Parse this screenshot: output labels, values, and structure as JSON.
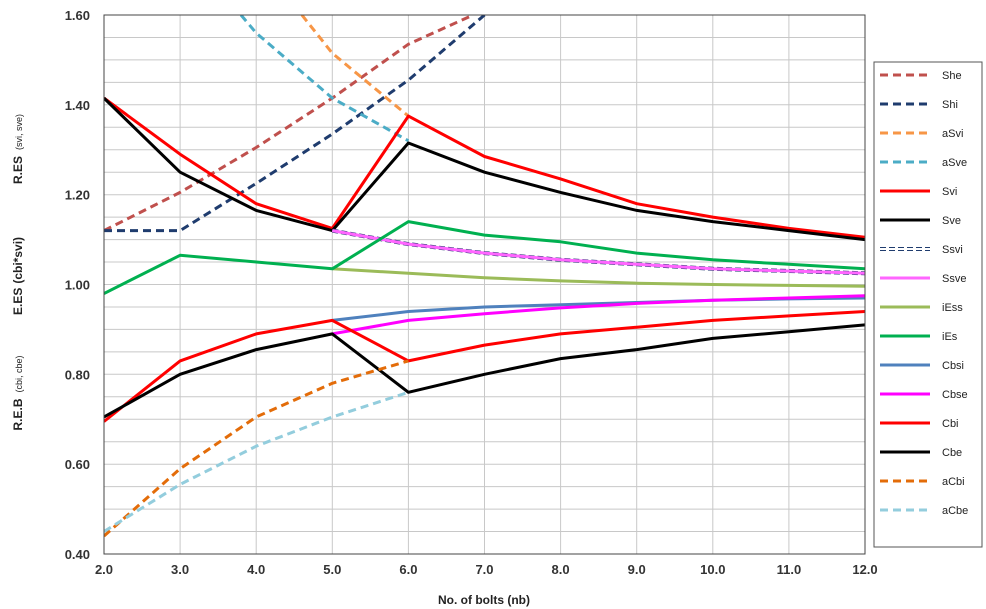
{
  "chart_data": {
    "type": "line",
    "xlabel": "No. of bolts (nb)",
    "ylabels": [
      {
        "main": "R.ES",
        "sub": "(svi, sve)"
      },
      {
        "main": "E.ES",
        "sub": "(cbi*svi)"
      },
      {
        "main": "R.E.B",
        "sub": "(cbi, cbe)"
      }
    ],
    "xlim": [
      2,
      12
    ],
    "ylim": [
      0.4,
      1.6
    ],
    "xticks": [
      2,
      3,
      4,
      5,
      6,
      7,
      8,
      9,
      10,
      11,
      12
    ],
    "xtick_labels": [
      "2.0",
      "3.0",
      "4.0",
      "5.0",
      "6.0",
      "7.0",
      "8.0",
      "9.0",
      "10.0",
      "11.0",
      "12.0"
    ],
    "yticks": [
      0.4,
      0.6,
      0.8,
      1.0,
      1.2,
      1.4,
      1.6
    ],
    "ytick_labels": [
      "0.40",
      "0.60",
      "0.80",
      "1.00",
      "1.20",
      "1.40",
      "1.60"
    ],
    "grid": true,
    "legend_position": "right",
    "series": [
      {
        "name": "She",
        "color": "#c0504d",
        "dash": true,
        "x": [
          2,
          3,
          4,
          5,
          6,
          6.85
        ],
        "y": [
          1.12,
          1.205,
          1.305,
          1.415,
          1.535,
          1.6
        ]
      },
      {
        "name": "Shi",
        "color": "#1f3c6e",
        "dash": true,
        "x": [
          2,
          3,
          4,
          5,
          6,
          7
        ],
        "y": [
          1.12,
          1.12,
          1.225,
          1.335,
          1.455,
          1.6
        ]
      },
      {
        "name": "aSvi",
        "color": "#f79646",
        "dash": true,
        "x": [
          4.6,
          5,
          6
        ],
        "y": [
          1.6,
          1.515,
          1.375
        ]
      },
      {
        "name": "aSve",
        "color": "#4bacc6",
        "dash": true,
        "x": [
          3.8,
          4,
          5,
          6
        ],
        "y": [
          1.6,
          1.56,
          1.415,
          1.32
        ]
      },
      {
        "name": "Svi",
        "color": "#ff0000",
        "dash": false,
        "x": [
          2,
          3,
          4,
          5,
          6,
          7,
          8,
          9,
          10,
          11,
          12
        ],
        "y": [
          1.415,
          1.29,
          1.18,
          1.125,
          1.375,
          1.285,
          1.235,
          1.18,
          1.15,
          1.125,
          1.105
        ]
      },
      {
        "name": "Sve",
        "color": "#000000",
        "dash": false,
        "x": [
          2,
          3,
          4,
          5,
          6,
          7,
          8,
          9,
          10,
          11,
          12
        ],
        "y": [
          1.415,
          1.25,
          1.165,
          1.12,
          1.315,
          1.25,
          1.205,
          1.165,
          1.14,
          1.12,
          1.1
        ]
      },
      {
        "name": "Ssvi",
        "color": "#1f3c6e",
        "dash": false,
        "outline": true,
        "x": [
          5,
          6,
          7,
          8,
          9,
          10,
          11,
          12
        ],
        "y": [
          1.12,
          1.09,
          1.07,
          1.055,
          1.045,
          1.035,
          1.03,
          1.025
        ]
      },
      {
        "name": "Ssve",
        "color": "#ff66ff",
        "dash": false,
        "x": [
          5,
          6,
          7,
          8,
          9,
          10,
          11,
          12
        ],
        "y": [
          1.12,
          1.09,
          1.07,
          1.055,
          1.045,
          1.035,
          1.03,
          1.025
        ]
      },
      {
        "name": "iEss",
        "color": "#9bbb59",
        "dash": false,
        "x": [
          5,
          6,
          7,
          8,
          9,
          10,
          11,
          12
        ],
        "y": [
          1.035,
          1.025,
          1.015,
          1.008,
          1.003,
          1.0,
          0.998,
          0.996
        ]
      },
      {
        "name": "iEs",
        "color": "#00b050",
        "dash": false,
        "x": [
          2,
          3,
          4,
          5,
          6,
          7,
          8,
          9,
          10,
          11,
          12
        ],
        "y": [
          0.98,
          1.065,
          1.05,
          1.035,
          1.14,
          1.11,
          1.095,
          1.07,
          1.055,
          1.045,
          1.035
        ]
      },
      {
        "name": "Cbsi",
        "color": "#4f81bd",
        "dash": false,
        "x": [
          5,
          6,
          7,
          8,
          9,
          10,
          11,
          12
        ],
        "y": [
          0.92,
          0.94,
          0.95,
          0.955,
          0.96,
          0.965,
          0.968,
          0.97
        ]
      },
      {
        "name": "Cbse",
        "color": "#ff00ff",
        "dash": false,
        "x": [
          5,
          6,
          7,
          8,
          9,
          10,
          11,
          12
        ],
        "y": [
          0.89,
          0.92,
          0.935,
          0.948,
          0.958,
          0.965,
          0.97,
          0.975
        ]
      },
      {
        "name": "Cbi",
        "color": "#ff0000",
        "dash": false,
        "x": [
          2,
          3,
          4,
          5,
          6,
          7,
          8,
          9,
          10,
          11,
          12
        ],
        "y": [
          0.695,
          0.83,
          0.89,
          0.92,
          0.83,
          0.865,
          0.89,
          0.905,
          0.92,
          0.93,
          0.94
        ]
      },
      {
        "name": "Cbe",
        "color": "#000000",
        "dash": false,
        "x": [
          2,
          3,
          4,
          5,
          6,
          7,
          8,
          9,
          10,
          11,
          12
        ],
        "y": [
          0.705,
          0.8,
          0.855,
          0.89,
          0.76,
          0.8,
          0.835,
          0.855,
          0.88,
          0.895,
          0.91
        ]
      },
      {
        "name": "aCbi",
        "color": "#e36c09",
        "dash": true,
        "x": [
          2,
          3,
          4,
          5,
          6
        ],
        "y": [
          0.44,
          0.59,
          0.705,
          0.78,
          0.83
        ]
      },
      {
        "name": "aCbe",
        "color": "#93cddd",
        "dash": true,
        "x": [
          2,
          3,
          4,
          5,
          6
        ],
        "y": [
          0.45,
          0.555,
          0.64,
          0.705,
          0.76
        ]
      }
    ]
  }
}
